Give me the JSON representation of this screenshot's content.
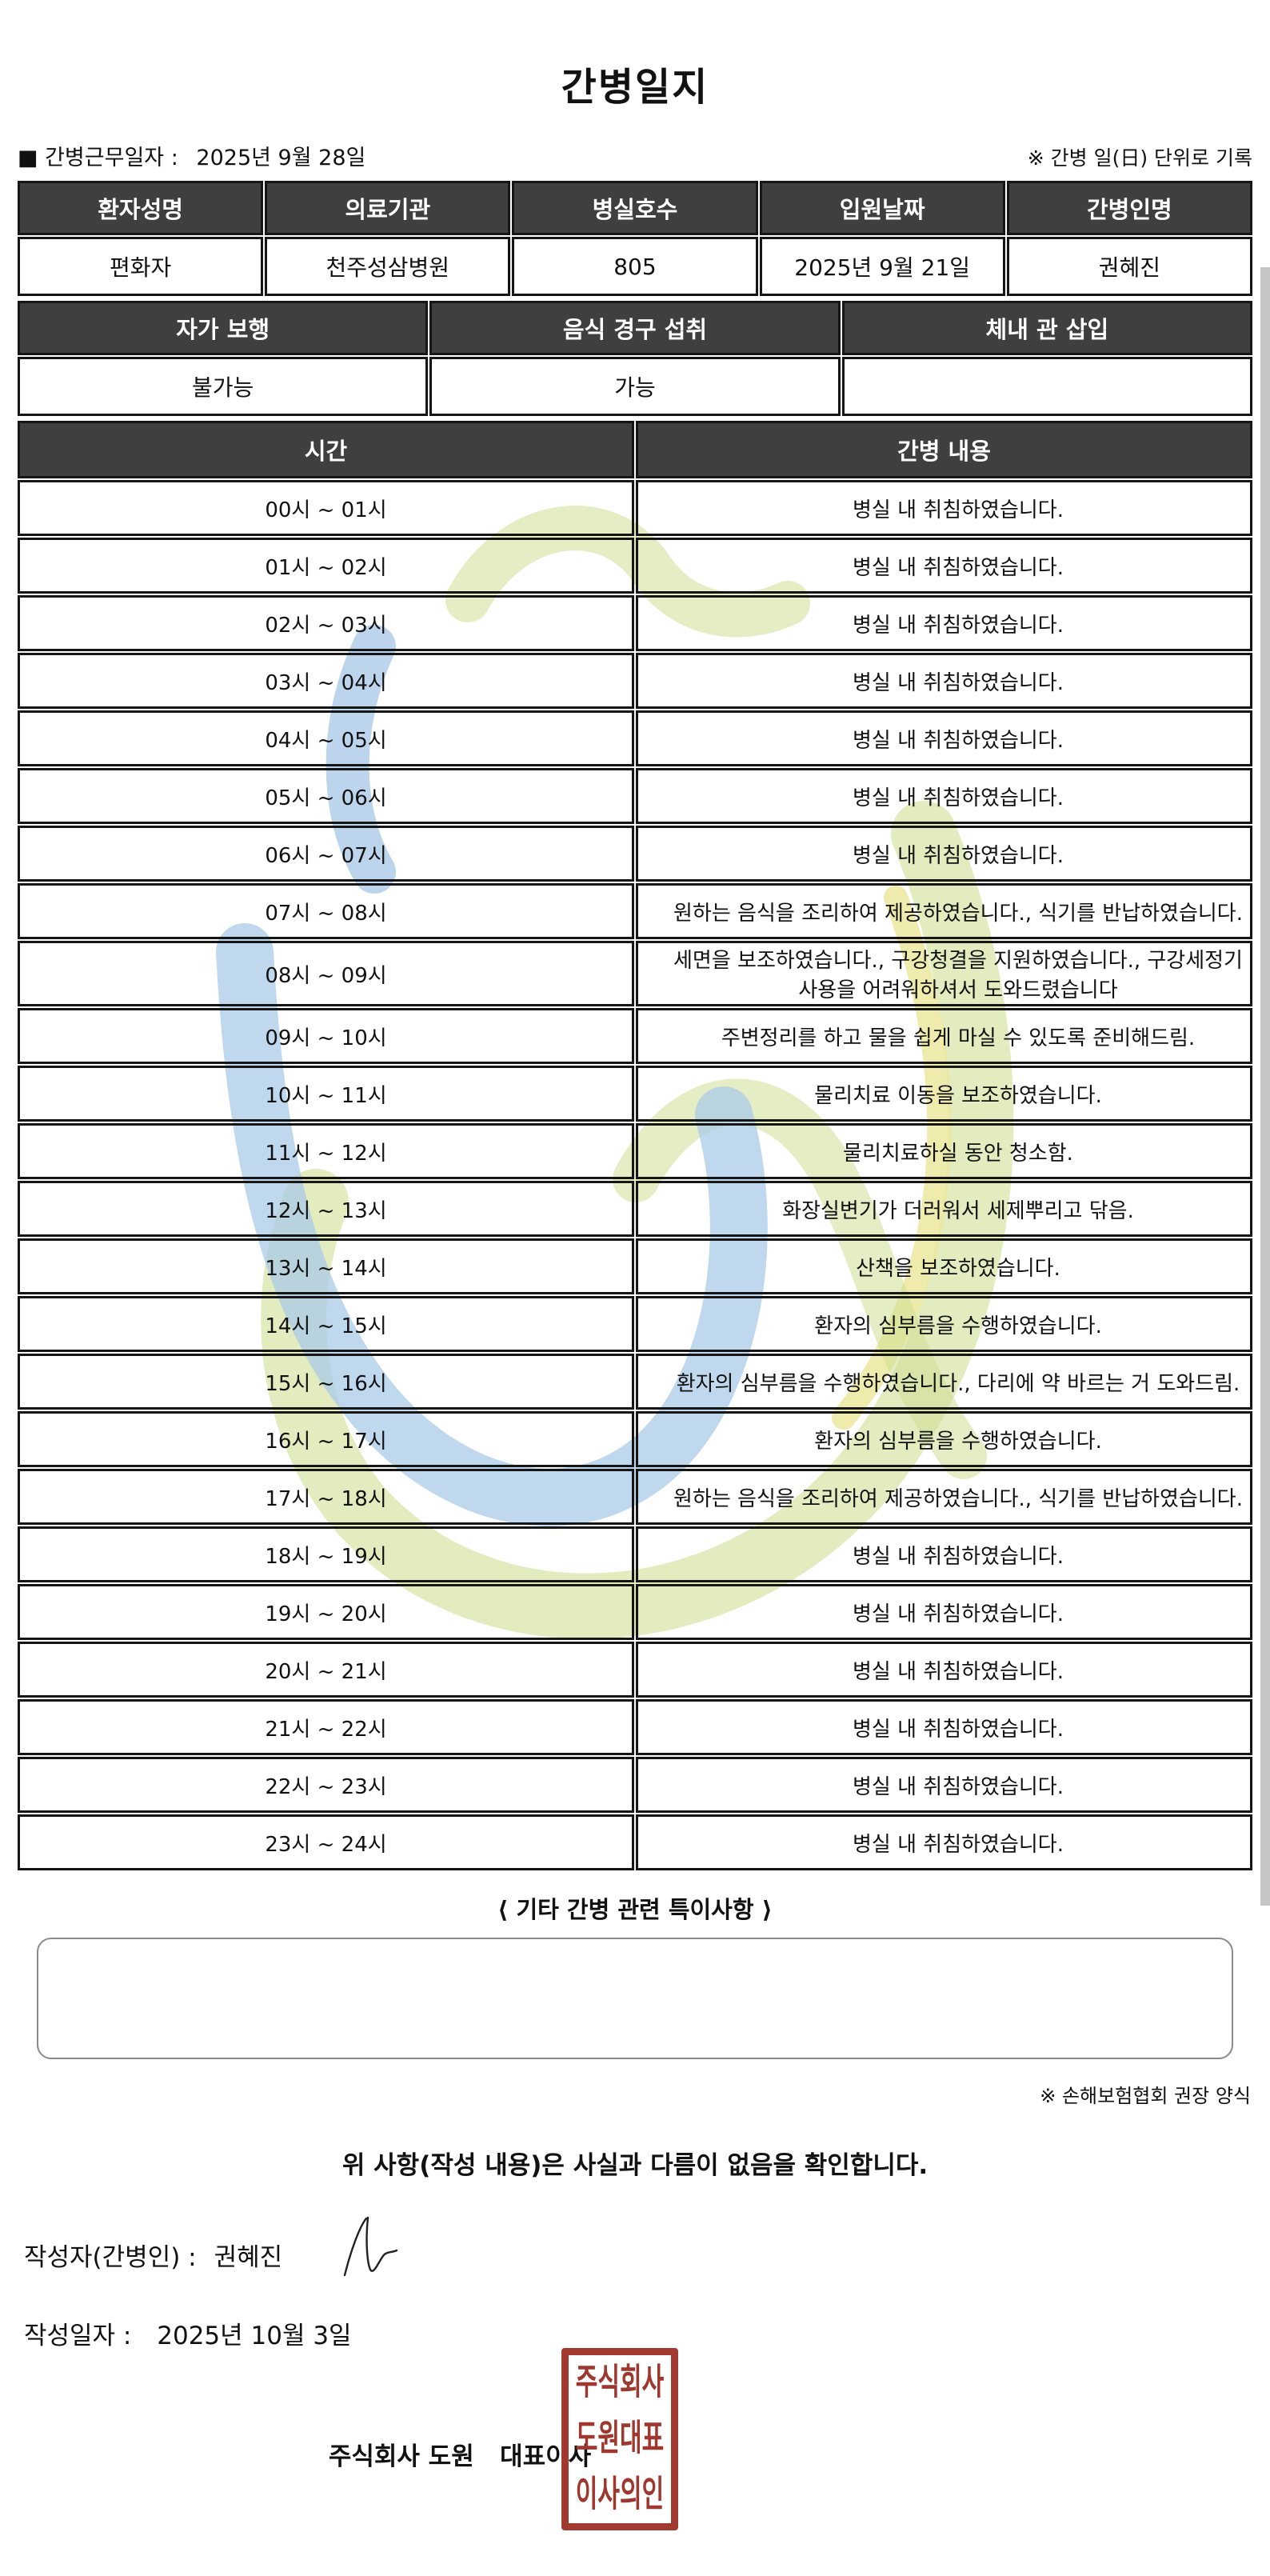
{
  "title": "간병일지",
  "meta": {
    "work_date_label": "■ 간병근무일자 :",
    "work_date": "2025년 9월 28일",
    "unit_note": "※ 간병 일(日) 단위로 기록"
  },
  "patient_table": {
    "headers": [
      "환자성명",
      "의료기관",
      "병실호수",
      "입원날짜",
      "간병인명"
    ],
    "values": [
      "편화자",
      "천주성삼병원",
      "805",
      "2025년 9월 21일",
      "권혜진"
    ]
  },
  "status_table": {
    "headers": [
      "자가 보행",
      "음식 경구 섭취",
      "체내 관 삽입"
    ],
    "values": [
      "불가능",
      "가능",
      ""
    ]
  },
  "care_table": {
    "headers": [
      "시간",
      "간병 내용"
    ],
    "rows": [
      {
        "time": "00시 ~ 01시",
        "content": "병실 내 취침하였습니다."
      },
      {
        "time": "01시 ~ 02시",
        "content": "병실 내 취침하였습니다."
      },
      {
        "time": "02시 ~ 03시",
        "content": "병실 내 취침하였습니다."
      },
      {
        "time": "03시 ~ 04시",
        "content": "병실 내 취침하였습니다."
      },
      {
        "time": "04시 ~ 05시",
        "content": "병실 내 취침하였습니다."
      },
      {
        "time": "05시 ~ 06시",
        "content": "병실 내 취침하였습니다."
      },
      {
        "time": "06시 ~ 07시",
        "content": "병실 내 취침하였습니다."
      },
      {
        "time": "07시 ~ 08시",
        "content": "원하는 음식을 조리하여 제공하였습니다., 식기를 반납하였습니다."
      },
      {
        "time": "08시 ~ 09시",
        "content": "세면을 보조하였습니다., 구강청결을 지원하였습니다., 구강세정기 사용을 어려워하셔서 도와드렸습니다"
      },
      {
        "time": "09시 ~ 10시",
        "content": "주변정리를 하고 물을 쉽게 마실 수 있도록 준비해드림."
      },
      {
        "time": "10시 ~ 11시",
        "content": "물리치료 이동을 보조하였습니다."
      },
      {
        "time": "11시 ~ 12시",
        "content": "물리치료하실 동안 청소함."
      },
      {
        "time": "12시 ~ 13시",
        "content": "화장실변기가 더러워서 세제뿌리고 닦음."
      },
      {
        "time": "13시 ~ 14시",
        "content": "산책을 보조하였습니다."
      },
      {
        "time": "14시 ~ 15시",
        "content": "환자의 심부름을 수행하였습니다."
      },
      {
        "time": "15시 ~ 16시",
        "content": "환자의 심부름을 수행하였습니다., 다리에 약 바르는 거 도와드림."
      },
      {
        "time": "16시 ~ 17시",
        "content": "환자의 심부름을 수행하였습니다."
      },
      {
        "time": "17시 ~ 18시",
        "content": "원하는 음식을 조리하여 제공하였습니다., 식기를 반납하였습니다."
      },
      {
        "time": "18시 ~ 19시",
        "content": "병실 내 취침하였습니다."
      },
      {
        "time": "19시 ~ 20시",
        "content": "병실 내 취침하였습니다."
      },
      {
        "time": "20시 ~ 21시",
        "content": "병실 내 취침하였습니다."
      },
      {
        "time": "21시 ~ 22시",
        "content": "병실 내 취침하였습니다."
      },
      {
        "time": "22시 ~ 23시",
        "content": "병실 내 취침하였습니다."
      },
      {
        "time": "23시 ~ 24시",
        "content": "병실 내 취침하였습니다."
      }
    ]
  },
  "notes": {
    "heading": "⟨ 기타 간병 관련 특이사항 ⟩",
    "content": "",
    "form_note": "※ 손해보험협회 권장 양식"
  },
  "confirmation": "위 사항(작성 내용)은 사실과 다름이 없음을 확인합니다.",
  "signing": {
    "writer_label": "작성자(간병인) :",
    "writer_name": "권혜진",
    "date_label": "작성일자 :",
    "date_value": "2025년 10월 3일",
    "company_line": "주식회사 도원   대표이사",
    "seal_lines": [
      "주식회사",
      "도원대표",
      "이사의인"
    ]
  },
  "colors": {
    "header_bg": "#3f3f3f",
    "seal_red": "#a23a31",
    "watermark_green": "#cfdf93",
    "watermark_yellow": "#ebe79e",
    "watermark_blue": "#abcbe8"
  }
}
